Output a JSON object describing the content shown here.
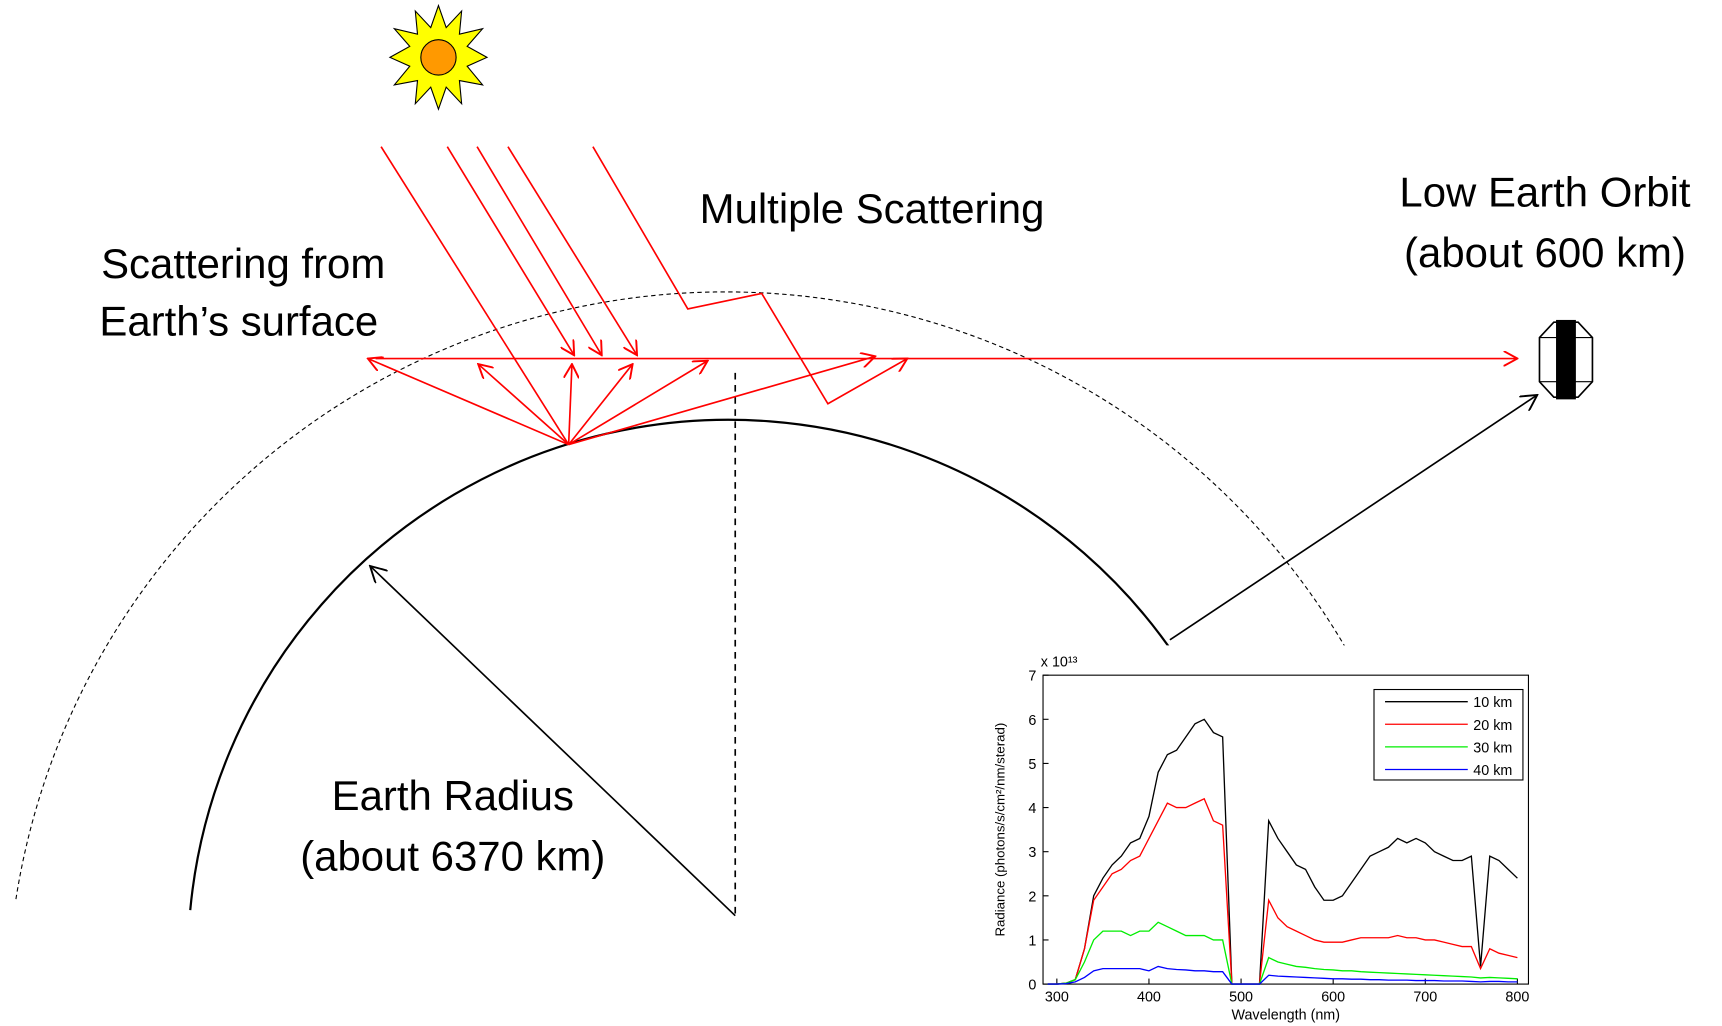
{
  "labels": [
    "Multiple Scattering",
    "Low Earth Orbit",
    "(about 600 km)",
    "Scattering from",
    "Earth’s surface",
    "Earth Radius",
    "(about 6370 km)"
  ],
  "chart_data": {
    "type": "line",
    "xlabel": "Wavelength (nm)",
    "ylabel": "Radiance (photons/s/cm²/nm/sterad)",
    "y_multiplier_label": "x 10¹³",
    "x": [
      290,
      300,
      310,
      320,
      330,
      340,
      350,
      360,
      370,
      380,
      390,
      400,
      410,
      420,
      430,
      440,
      450,
      460,
      470,
      480,
      490,
      500,
      510,
      520,
      530,
      540,
      550,
      560,
      570,
      580,
      590,
      600,
      610,
      620,
      630,
      640,
      650,
      660,
      670,
      680,
      690,
      700,
      710,
      720,
      730,
      740,
      750,
      760,
      770,
      780,
      790,
      800
    ],
    "series": [
      {
        "name": "10 km",
        "color": "#000000",
        "values": [
          0,
          0,
          0.02,
          0.1,
          0.8,
          2.0,
          2.4,
          2.7,
          2.9,
          3.2,
          3.3,
          3.8,
          4.8,
          5.2,
          5.3,
          5.6,
          5.9,
          6.0,
          5.7,
          5.6,
          0,
          0,
          0,
          0,
          3.7,
          3.3,
          3.0,
          2.7,
          2.6,
          2.2,
          1.9,
          1.9,
          2.0,
          2.3,
          2.6,
          2.9,
          3.0,
          3.1,
          3.3,
          3.2,
          3.3,
          3.2,
          3.0,
          2.9,
          2.8,
          2.8,
          2.9,
          0.4,
          2.9,
          2.8,
          2.6,
          2.4
        ]
      },
      {
        "name": "20 km",
        "color": "#ff0000",
        "values": [
          0,
          0,
          0.02,
          0.1,
          0.8,
          1.9,
          2.2,
          2.5,
          2.6,
          2.8,
          2.9,
          3.3,
          3.7,
          4.1,
          4.0,
          4.0,
          4.1,
          4.2,
          3.7,
          3.6,
          0,
          0,
          0,
          0,
          1.9,
          1.5,
          1.3,
          1.2,
          1.1,
          1.0,
          0.95,
          0.95,
          0.95,
          1.0,
          1.05,
          1.05,
          1.05,
          1.05,
          1.1,
          1.05,
          1.05,
          1.0,
          1.0,
          0.95,
          0.9,
          0.85,
          0.85,
          0.35,
          0.8,
          0.7,
          0.65,
          0.6
        ]
      },
      {
        "name": "30 km",
        "color": "#00ee00",
        "values": [
          0,
          0,
          0.02,
          0.1,
          0.5,
          1.0,
          1.2,
          1.2,
          1.2,
          1.1,
          1.2,
          1.2,
          1.4,
          1.3,
          1.2,
          1.1,
          1.1,
          1.1,
          1.0,
          1.0,
          0,
          0,
          0,
          0,
          0.6,
          0.5,
          0.45,
          0.4,
          0.38,
          0.35,
          0.33,
          0.32,
          0.3,
          0.3,
          0.28,
          0.27,
          0.26,
          0.25,
          0.24,
          0.23,
          0.22,
          0.21,
          0.2,
          0.19,
          0.18,
          0.17,
          0.16,
          0.14,
          0.15,
          0.14,
          0.13,
          0.12
        ]
      },
      {
        "name": "40 km",
        "color": "#0000ff",
        "values": [
          0,
          0,
          0.01,
          0.05,
          0.15,
          0.3,
          0.35,
          0.35,
          0.35,
          0.35,
          0.35,
          0.3,
          0.4,
          0.35,
          0.33,
          0.32,
          0.3,
          0.3,
          0.28,
          0.28,
          0,
          0,
          0,
          0,
          0.2,
          0.18,
          0.17,
          0.16,
          0.15,
          0.14,
          0.13,
          0.12,
          0.12,
          0.11,
          0.11,
          0.1,
          0.1,
          0.09,
          0.09,
          0.09,
          0.08,
          0.08,
          0.08,
          0.07,
          0.07,
          0.07,
          0.06,
          0.05,
          0.06,
          0.06,
          0.05,
          0.05
        ]
      }
    ],
    "xlim": [
      285,
      812
    ],
    "ylim": [
      0,
      7
    ],
    "xticks": [
      300,
      400,
      500,
      600,
      700,
      800
    ],
    "yticks": [
      0,
      1,
      2,
      3,
      4,
      5,
      6,
      7
    ],
    "legend": "upper right"
  }
}
